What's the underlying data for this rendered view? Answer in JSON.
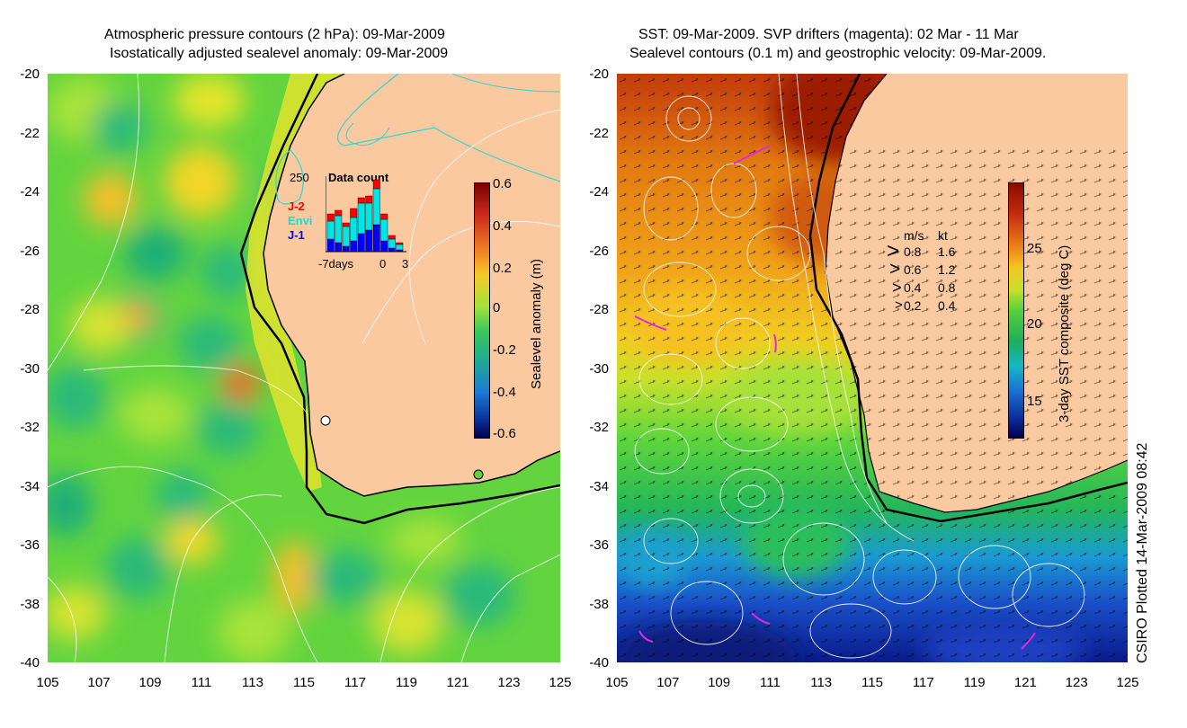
{
  "left_panel": {
    "title_line1": "Atmospheric pressure contours (2 hPa): 09-Mar-2009",
    "title_line2": "Isostatically adjusted sealevel anomaly: 09-Mar-2009",
    "colorbar_label": "Sealevel anomaly (m)",
    "colorbar_ticks": [
      "0.6",
      "0.4",
      "0.2",
      "0",
      "-0.2",
      "-0.4",
      "-0.6"
    ],
    "inset": {
      "max_label": "250",
      "title": "Data count",
      "legend": [
        {
          "label": "J-2",
          "color": "#ff0000"
        },
        {
          "label": "Envi",
          "color": "#00e5e5"
        },
        {
          "label": "J-1",
          "color": "#0000ff"
        }
      ],
      "xtick_left": "-7days",
      "xtick_mid": "0",
      "xtick_right": "3"
    }
  },
  "right_panel": {
    "title_line1": "SST: 09-Mar-2009. SVP drifters (magenta): 02 Mar - 11 Mar",
    "title_line2": "Sealevel contours (0.1 m) and geostrophic velocity: 09-Mar-2009.",
    "colorbar_label": "3-day SST composite (deg C)",
    "colorbar_ticks": [
      "25",
      "20",
      "15"
    ],
    "velocity_legend": {
      "header_ms": "m/s",
      "header_kt": "kt",
      "rows": [
        {
          "ms": "0.8",
          "kt": "1.6"
        },
        {
          "ms": "0.6",
          "kt": "1.2"
        },
        {
          "ms": "0.4",
          "kt": "0.8"
        },
        {
          "ms": "0.2",
          "kt": "0.4"
        }
      ]
    }
  },
  "y_ticks": [
    "-20",
    "-22",
    "-24",
    "-26",
    "-28",
    "-30",
    "-32",
    "-34",
    "-36",
    "-38",
    "-40"
  ],
  "x_ticks": [
    "105",
    "107",
    "109",
    "111",
    "113",
    "115",
    "117",
    "119",
    "121",
    "123",
    "125"
  ],
  "footer_vertical": "CSIRO Plotted 14-Mar-2009 08:42",
  "colors": {
    "land": "#fac9a0",
    "sealevel_green": "#5fd23c",
    "sst_red": "#b81e0c",
    "contour_white": "#ffffff",
    "coast_black": "#000000",
    "pressure_cyan": "#2ed6d6"
  }
}
